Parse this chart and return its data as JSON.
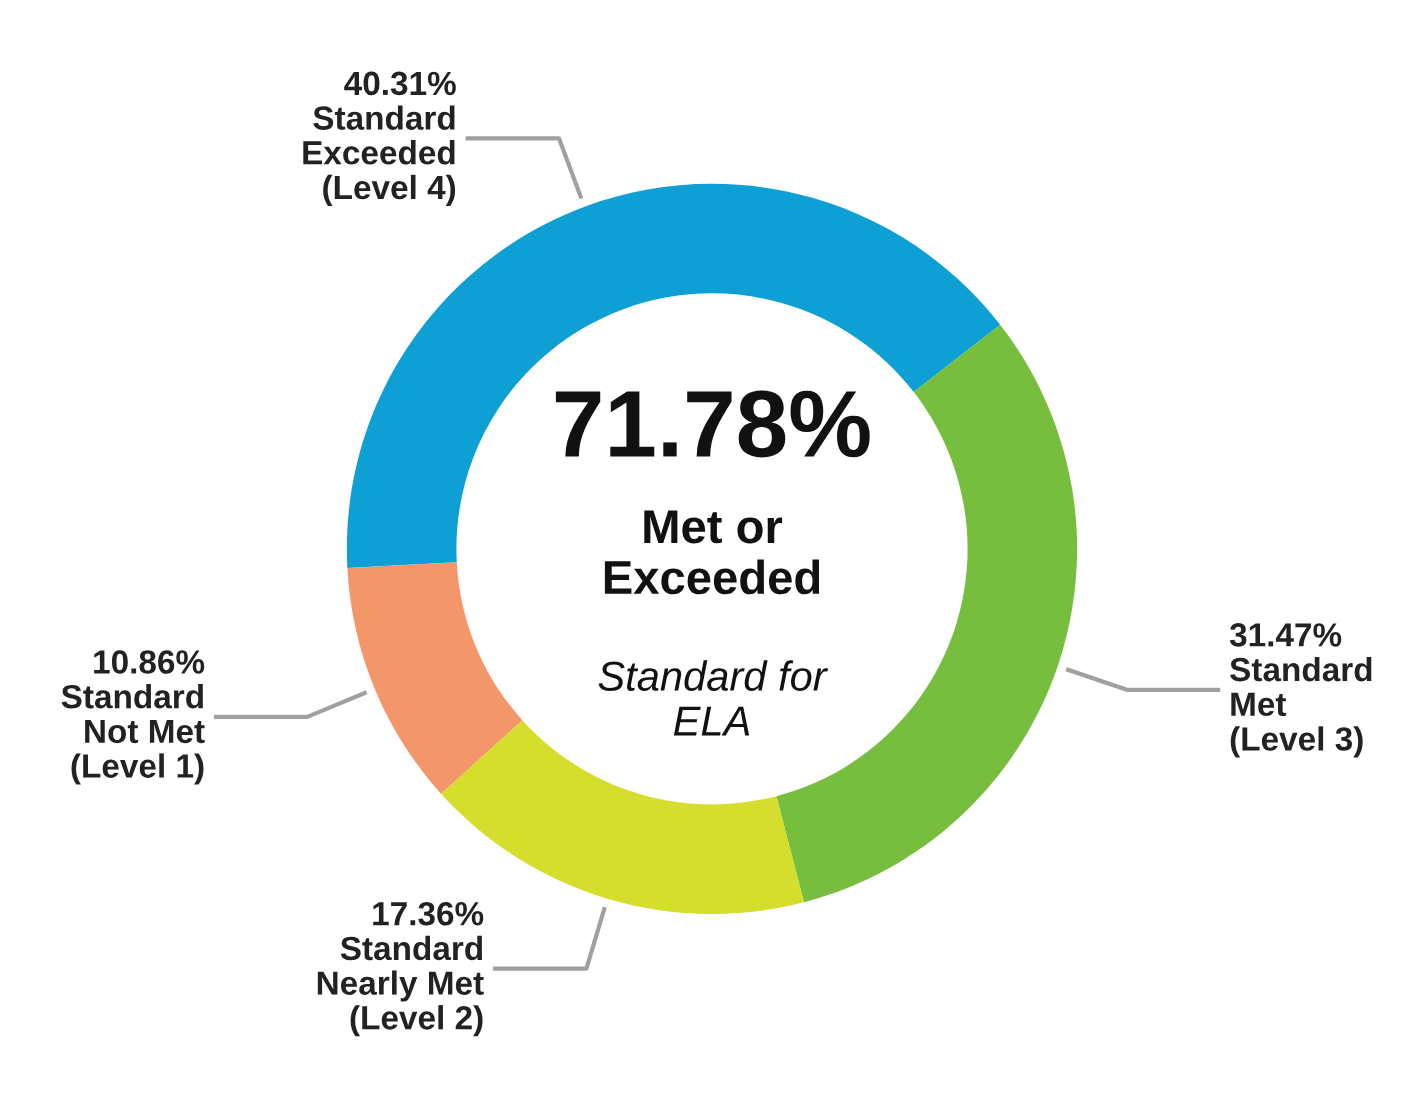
{
  "chart_data": {
    "type": "donut",
    "categories": [
      "Standard Exceeded (Level 4)",
      "Standard Met (Level 3)",
      "Standard Nearly Met (Level 2)",
      "Standard Not Met (Level 1)"
    ],
    "values": [
      40.31,
      31.47,
      17.36,
      10.86
    ],
    "colors": [
      "#0e9fd4",
      "#78be3e",
      "#d5de2c",
      "#f3966a"
    ],
    "value_labels": [
      "40.31%",
      "31.47%",
      "17.36%",
      "10.86%"
    ],
    "annotations": [
      "71.78%",
      "Met or Exceeded",
      "Standard for ELA"
    ],
    "legend": false
  }
}
